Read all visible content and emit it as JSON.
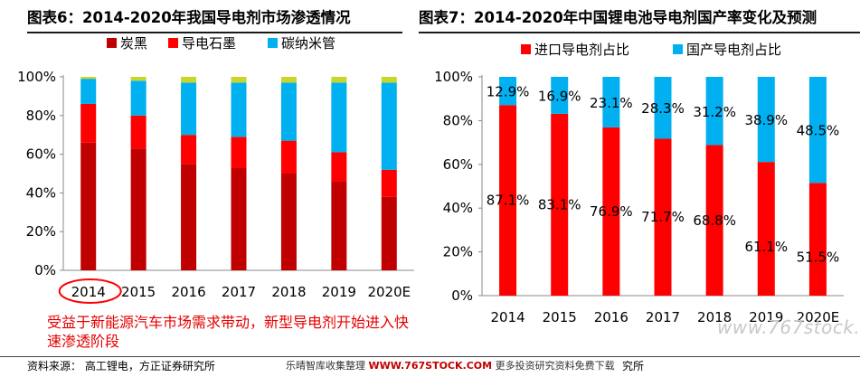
{
  "panels": {
    "left_title": "图表6：2014-2020年我国导电剂市场渗透情况",
    "right_title": "图表7：2014-2020年中国锂电池导电剂国产率变化及预测"
  },
  "annotation": "受益于新能源汽车市场需求带动，新型导电剂开始进入快速渗透阶段",
  "footer": {
    "source": "资料来源： 高工锂电，方正证券研究所",
    "watermark_prefix": "乐晴智库收集整理",
    "watermark_url": "WWW.767STOCK.COM",
    "watermark_suffix": "更多投资研究资料免费下载",
    "tail": "究所"
  },
  "site_watermark": "www.767stock.com",
  "colors": {
    "carbon_black": "#c00000",
    "graphite": "#ff0000",
    "cnt": "#00b0f0",
    "import": "#ff0000",
    "domestic": "#00b0f0",
    "highlight_circle": "#ff0000"
  },
  "chart_data": [
    {
      "type": "bar",
      "stacked": true,
      "categories": [
        "2014",
        "2015",
        "2016",
        "2017",
        "2018",
        "2019",
        "2020E"
      ],
      "series": [
        {
          "name": "炭黑",
          "color": "#c00000",
          "values": [
            66,
            63,
            55,
            53,
            50,
            46,
            38
          ]
        },
        {
          "name": "导电石墨",
          "color": "#ff0000",
          "values": [
            20,
            17,
            15,
            16,
            17,
            15,
            14
          ]
        },
        {
          "name": "碳纳米管",
          "color": "#00b0f0",
          "values": [
            13,
            18,
            27,
            28,
            30,
            36,
            45
          ]
        },
        {
          "name": "",
          "color": "#c9d52b",
          "values": [
            1,
            2,
            3,
            3,
            3,
            3,
            3
          ]
        }
      ],
      "yticks": [
        "0%",
        "20%",
        "40%",
        "60%",
        "80%",
        "100%"
      ],
      "ylim": [
        0,
        100
      ],
      "legend": "top",
      "highlight": "2014"
    },
    {
      "type": "bar",
      "stacked": true,
      "categories": [
        "2014",
        "2015",
        "2016",
        "2017",
        "2018",
        "2019",
        "2020E"
      ],
      "series": [
        {
          "name": "进口导电剂占比",
          "color": "#ff0000",
          "values": [
            87.1,
            83.1,
            76.9,
            71.7,
            68.8,
            61.1,
            51.5
          ],
          "labels": [
            "87.1%",
            "83.1%",
            "76.9%",
            "71.7%",
            "68.8%",
            "61.1%",
            "51.5%"
          ]
        },
        {
          "name": "国产导电剂占比",
          "color": "#00b0f0",
          "values": [
            12.9,
            16.9,
            23.1,
            28.3,
            31.2,
            38.9,
            48.5
          ],
          "labels": [
            "12.9%",
            "16.9%",
            "23.1%",
            "28.3%",
            "31.2%",
            "38.9%",
            "48.5%"
          ]
        }
      ],
      "yticks": [
        "0%",
        "20%",
        "40%",
        "60%",
        "80%",
        "100%"
      ],
      "ylim": [
        0,
        100
      ],
      "legend": "top"
    }
  ]
}
